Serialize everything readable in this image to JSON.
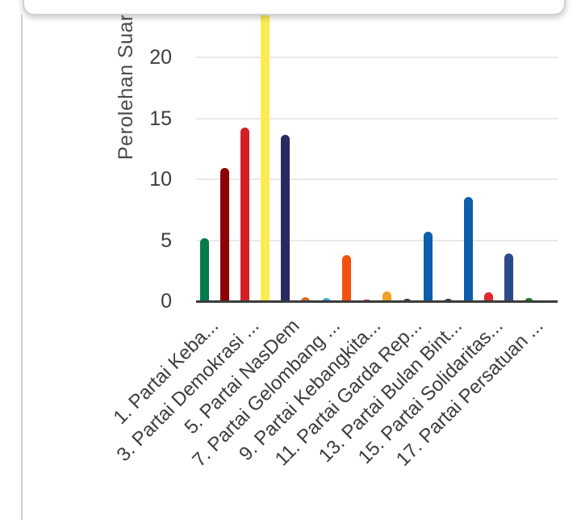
{
  "chart_data": {
    "type": "bar",
    "title": "",
    "xlabel": "",
    "ylabel": "Perolehan Suara",
    "ylim": [
      0,
      25
    ],
    "yticks": [
      0,
      5,
      10,
      15,
      20
    ],
    "grid": true,
    "legend_position": "none",
    "note": "bar 4 (yellow) is clipped at the top of the visible plot area",
    "categories": [
      "1. Partai Keba...",
      "",
      "3. Partai Demokrasi ...",
      "",
      "5. Partai NasDem",
      "",
      "7. Partai Gelombang ...",
      "",
      "9. Partai Kebangkita...",
      "",
      "11. Partai Garda Rep...",
      "",
      "13. Partai Bulan Bint...",
      "",
      "15. Partai Solidaritas...",
      "",
      "17. Partai Persatuan ...",
      ""
    ],
    "values": [
      5.15,
      10.9,
      14.25,
      24.2,
      13.65,
      0.35,
      0.25,
      3.75,
      0.12,
      0.8,
      0.2,
      5.7,
      0.2,
      8.55,
      0.7,
      3.9,
      0.3,
      0.05
    ],
    "colors": [
      "#077a4c",
      "#8e0005",
      "#d32026",
      "#fdeb52",
      "#2a2a63",
      "#db6c1f",
      "#3faed8",
      "#f4500e",
      "#cf3a30",
      "#efa227",
      "#2c3a55",
      "#0d5eab",
      "#1d4a21",
      "#0d5eab",
      "#dd2a2e",
      "#2a4a8a",
      "#157a1e",
      "#555555"
    ]
  },
  "ui_colors": {
    "axis_line": "#3b3b3b",
    "gridline": "#e9e9e9",
    "tick_text": "#3d3d3d",
    "divider": "#d0d0d0",
    "card_border": "#ccd2d8",
    "background": "#ffffff"
  }
}
